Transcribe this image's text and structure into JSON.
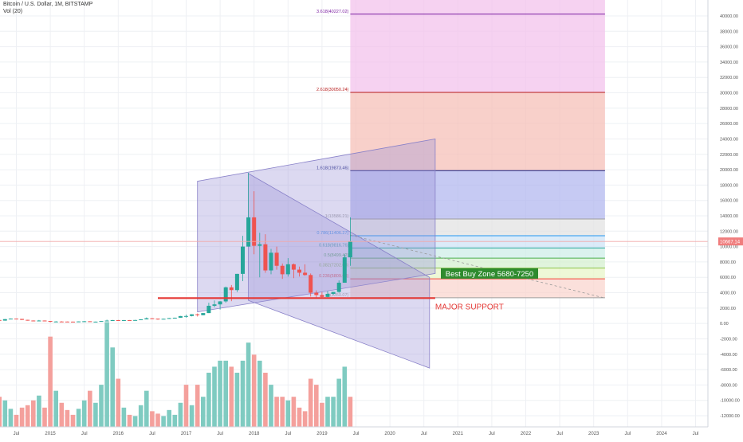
{
  "header": {
    "title": "Bitcoin / U.S. Dollar, 1M, BITSTAMP",
    "volume_label": "Vol (20)"
  },
  "colors": {
    "up": "#26a69a",
    "down": "#ef5350",
    "up_vol": "#7fcbc1",
    "down_vol": "#f4a09c",
    "support_line": "#e53935",
    "price_line": "#f2a7a7",
    "channel_fill": "#9a93d6",
    "channel_stroke": "#8880c8",
    "buy_zone_bg": "#2e8b2e",
    "buy_zone_text": "#ffffff",
    "fib_purple": "#7b1fa2",
    "fib_red": "#b71c1c",
    "fib_blue": "#1a237e",
    "price_badge": "#f07d7d"
  },
  "chart_data": {
    "type": "candlestick",
    "title": "Bitcoin / U.S. Dollar, 1M, BITSTAMP",
    "timeframe": "1M",
    "exchange": "BITSTAMP",
    "last_price": "10667.14",
    "y_axis": {
      "range": [
        -12000,
        40000
      ],
      "ticks": [
        -12000,
        -10000,
        -8000,
        -6000,
        -4000,
        -2000,
        0,
        2000,
        4000,
        6000,
        8000,
        10000,
        12000,
        14000,
        16000,
        18000,
        20000,
        22000,
        24000,
        26000,
        28000,
        30000,
        32000,
        34000,
        36000,
        38000,
        40000
      ],
      "tick_labels": [
        "-12000.00",
        "-10000.00",
        "-8000.00",
        "-6000.00",
        "-4000.00",
        "-2000.00",
        "0.00",
        "2000.00",
        "4000.00",
        "6000.00",
        "8000.00",
        "10000.00",
        "12000.00",
        "14000.00",
        "16000.00",
        "18000.00",
        "20000.00",
        "22000.00",
        "24000.00",
        "26000.00",
        "28000.00",
        "30000.00",
        "32000.00",
        "34000.00",
        "36000.00",
        "38000.00",
        "40000.00"
      ]
    },
    "x_axis": {
      "ticks": [
        {
          "label": "Jul",
          "date": "2014-07"
        },
        {
          "label": "2015",
          "date": "2015-01"
        },
        {
          "label": "Jul",
          "date": "2015-07"
        },
        {
          "label": "2016",
          "date": "2016-01"
        },
        {
          "label": "Jul",
          "date": "2016-07"
        },
        {
          "label": "2017",
          "date": "2017-01"
        },
        {
          "label": "Jul",
          "date": "2017-07"
        },
        {
          "label": "2018",
          "date": "2018-01"
        },
        {
          "label": "Jul",
          "date": "2018-07"
        },
        {
          "label": "2019",
          "date": "2019-01"
        },
        {
          "label": "Jul",
          "date": "2019-07"
        },
        {
          "label": "2020",
          "date": "2020-01"
        },
        {
          "label": "Jul",
          "date": "2020-07"
        },
        {
          "label": "2021",
          "date": "2021-01"
        },
        {
          "label": "Jul",
          "date": "2021-07"
        },
        {
          "label": "2022",
          "date": "2022-01"
        },
        {
          "label": "Jul",
          "date": "2022-07"
        },
        {
          "label": "2023",
          "date": "2023-01"
        },
        {
          "label": "Jul",
          "date": "2023-07"
        },
        {
          "label": "2024",
          "date": "2024-01"
        },
        {
          "label": "Jul",
          "date": "2024-07"
        }
      ]
    },
    "candles": [
      {
        "date": "2014-02",
        "o": 560,
        "h": 700,
        "l": 420,
        "c": 440
      },
      {
        "date": "2014-03",
        "o": 440,
        "h": 520,
        "l": 420,
        "c": 450
      },
      {
        "date": "2014-04",
        "o": 450,
        "h": 500,
        "l": 340,
        "c": 370
      },
      {
        "date": "2014-05",
        "o": 370,
        "h": 580,
        "l": 360,
        "c": 560
      },
      {
        "date": "2014-06",
        "o": 560,
        "h": 650,
        "l": 550,
        "c": 630
      },
      {
        "date": "2014-07",
        "o": 630,
        "h": 640,
        "l": 570,
        "c": 590
      },
      {
        "date": "2014-08",
        "o": 590,
        "h": 600,
        "l": 440,
        "c": 470
      },
      {
        "date": "2014-09",
        "o": 470,
        "h": 480,
        "l": 360,
        "c": 380
      },
      {
        "date": "2014-10",
        "o": 380,
        "h": 400,
        "l": 280,
        "c": 330
      },
      {
        "date": "2014-11",
        "o": 330,
        "h": 450,
        "l": 320,
        "c": 380
      },
      {
        "date": "2014-12",
        "o": 380,
        "h": 390,
        "l": 300,
        "c": 320
      },
      {
        "date": "2015-01",
        "o": 320,
        "h": 320,
        "l": 150,
        "c": 220
      },
      {
        "date": "2015-02",
        "o": 220,
        "h": 300,
        "l": 210,
        "c": 250
      },
      {
        "date": "2015-03",
        "o": 250,
        "h": 300,
        "l": 240,
        "c": 245
      },
      {
        "date": "2015-04",
        "o": 245,
        "h": 255,
        "l": 215,
        "c": 236
      },
      {
        "date": "2015-05",
        "o": 236,
        "h": 245,
        "l": 225,
        "c": 230
      },
      {
        "date": "2015-06",
        "o": 230,
        "h": 265,
        "l": 220,
        "c": 263
      },
      {
        "date": "2015-07",
        "o": 263,
        "h": 315,
        "l": 255,
        "c": 285
      },
      {
        "date": "2015-08",
        "o": 285,
        "h": 285,
        "l": 200,
        "c": 230
      },
      {
        "date": "2015-09",
        "o": 230,
        "h": 245,
        "l": 225,
        "c": 236
      },
      {
        "date": "2015-10",
        "o": 236,
        "h": 330,
        "l": 235,
        "c": 314
      },
      {
        "date": "2015-11",
        "o": 314,
        "h": 500,
        "l": 310,
        "c": 377
      },
      {
        "date": "2015-12",
        "o": 377,
        "h": 465,
        "l": 350,
        "c": 430
      },
      {
        "date": "2016-01",
        "o": 430,
        "h": 460,
        "l": 350,
        "c": 368
      },
      {
        "date": "2016-02",
        "o": 368,
        "h": 440,
        "l": 365,
        "c": 436
      },
      {
        "date": "2016-03",
        "o": 436,
        "h": 440,
        "l": 400,
        "c": 416
      },
      {
        "date": "2016-04",
        "o": 416,
        "h": 470,
        "l": 410,
        "c": 448
      },
      {
        "date": "2016-05",
        "o": 448,
        "h": 550,
        "l": 440,
        "c": 531
      },
      {
        "date": "2016-06",
        "o": 531,
        "h": 780,
        "l": 530,
        "c": 670
      },
      {
        "date": "2016-07",
        "o": 670,
        "h": 700,
        "l": 610,
        "c": 624
      },
      {
        "date": "2016-08",
        "o": 624,
        "h": 630,
        "l": 480,
        "c": 573
      },
      {
        "date": "2016-09",
        "o": 573,
        "h": 630,
        "l": 570,
        "c": 608
      },
      {
        "date": "2016-10",
        "o": 608,
        "h": 720,
        "l": 600,
        "c": 700
      },
      {
        "date": "2016-11",
        "o": 700,
        "h": 760,
        "l": 680,
        "c": 745
      },
      {
        "date": "2016-12",
        "o": 745,
        "h": 980,
        "l": 740,
        "c": 963
      },
      {
        "date": "2017-01",
        "o": 963,
        "h": 1150,
        "l": 750,
        "c": 970
      },
      {
        "date": "2017-02",
        "o": 970,
        "h": 1200,
        "l": 920,
        "c": 1190
      },
      {
        "date": "2017-03",
        "o": 1190,
        "h": 1300,
        "l": 900,
        "c": 1080
      },
      {
        "date": "2017-04",
        "o": 1080,
        "h": 1350,
        "l": 1060,
        "c": 1350
      },
      {
        "date": "2017-05",
        "o": 1350,
        "h": 2700,
        "l": 1350,
        "c": 2300
      },
      {
        "date": "2017-06",
        "o": 2300,
        "h": 3000,
        "l": 2100,
        "c": 2480
      },
      {
        "date": "2017-07",
        "o": 2480,
        "h": 2900,
        "l": 1800,
        "c": 2870
      },
      {
        "date": "2017-08",
        "o": 2870,
        "h": 4800,
        "l": 2700,
        "c": 4700
      },
      {
        "date": "2017-09",
        "o": 4700,
        "h": 5000,
        "l": 2900,
        "c": 4340
      },
      {
        "date": "2017-10",
        "o": 4340,
        "h": 6450,
        "l": 4100,
        "c": 6450
      },
      {
        "date": "2017-11",
        "o": 6450,
        "h": 11400,
        "l": 5500,
        "c": 10000
      },
      {
        "date": "2017-12",
        "o": 10000,
        "h": 19600,
        "l": 10000,
        "c": 13800
      },
      {
        "date": "2018-01",
        "o": 13800,
        "h": 17200,
        "l": 9000,
        "c": 10100
      },
      {
        "date": "2018-02",
        "o": 10100,
        "h": 11800,
        "l": 6000,
        "c": 10300
      },
      {
        "date": "2018-03",
        "o": 10300,
        "h": 11600,
        "l": 6600,
        "c": 6900
      },
      {
        "date": "2018-04",
        "o": 6900,
        "h": 9700,
        "l": 6400,
        "c": 9200
      },
      {
        "date": "2018-05",
        "o": 9200,
        "h": 10000,
        "l": 7000,
        "c": 7500
      },
      {
        "date": "2018-06",
        "o": 7500,
        "h": 7800,
        "l": 5800,
        "c": 6400
      },
      {
        "date": "2018-07",
        "o": 6400,
        "h": 8500,
        "l": 6100,
        "c": 7700
      },
      {
        "date": "2018-08",
        "o": 7700,
        "h": 7800,
        "l": 5900,
        "c": 7000
      },
      {
        "date": "2018-09",
        "o": 7000,
        "h": 7400,
        "l": 6100,
        "c": 6600
      },
      {
        "date": "2018-10",
        "o": 6600,
        "h": 7700,
        "l": 6200,
        "c": 6300
      },
      {
        "date": "2018-11",
        "o": 6300,
        "h": 6500,
        "l": 3500,
        "c": 4000
      },
      {
        "date": "2018-12",
        "o": 4000,
        "h": 4300,
        "l": 3200,
        "c": 3700
      },
      {
        "date": "2019-01",
        "o": 3700,
        "h": 4100,
        "l": 3350,
        "c": 3450
      },
      {
        "date": "2019-02",
        "o": 3450,
        "h": 4200,
        "l": 3400,
        "c": 3850
      },
      {
        "date": "2019-03",
        "o": 3850,
        "h": 4100,
        "l": 3700,
        "c": 4100
      },
      {
        "date": "2019-04",
        "o": 4100,
        "h": 5600,
        "l": 4000,
        "c": 5300
      },
      {
        "date": "2019-05",
        "o": 5300,
        "h": 9000,
        "l": 5300,
        "c": 8600
      },
      {
        "date": "2019-06",
        "o": 8600,
        "h": 13800,
        "l": 7500,
        "c": 10667
      }
    ],
    "volume_series": [
      {
        "date": "2014-02",
        "up": false,
        "v": 4.5
      },
      {
        "date": "2014-03",
        "up": true,
        "v": 2.6
      },
      {
        "date": "2014-04",
        "up": false,
        "v": 2.5
      },
      {
        "date": "2014-05",
        "up": true,
        "v": 2.2
      },
      {
        "date": "2014-06",
        "up": true,
        "v": 1.5
      },
      {
        "date": "2014-07",
        "up": false,
        "v": 1.0
      },
      {
        "date": "2014-08",
        "up": false,
        "v": 1.6
      },
      {
        "date": "2014-09",
        "up": false,
        "v": 1.8
      },
      {
        "date": "2014-10",
        "up": false,
        "v": 2.2
      },
      {
        "date": "2014-11",
        "up": true,
        "v": 2.6
      },
      {
        "date": "2014-12",
        "up": false,
        "v": 1.6
      },
      {
        "date": "2015-01",
        "up": false,
        "v": 7.5
      },
      {
        "date": "2015-02",
        "up": true,
        "v": 3.0
      },
      {
        "date": "2015-03",
        "up": false,
        "v": 2.0
      },
      {
        "date": "2015-04",
        "up": false,
        "v": 1.4
      },
      {
        "date": "2015-05",
        "up": false,
        "v": 1.0
      },
      {
        "date": "2015-06",
        "up": true,
        "v": 1.5
      },
      {
        "date": "2015-07",
        "up": true,
        "v": 2.2
      },
      {
        "date": "2015-08",
        "up": false,
        "v": 3.0
      },
      {
        "date": "2015-09",
        "up": true,
        "v": 2.0
      },
      {
        "date": "2015-10",
        "up": true,
        "v": 3.5
      },
      {
        "date": "2015-11",
        "up": true,
        "v": 8.7
      },
      {
        "date": "2015-12",
        "up": true,
        "v": 6.6
      },
      {
        "date": "2016-01",
        "up": false,
        "v": 4.0
      },
      {
        "date": "2016-02",
        "up": true,
        "v": 1.6
      },
      {
        "date": "2016-03",
        "up": false,
        "v": 1.0
      },
      {
        "date": "2016-04",
        "up": true,
        "v": 0.9
      },
      {
        "date": "2016-05",
        "up": true,
        "v": 1.8
      },
      {
        "date": "2016-06",
        "up": true,
        "v": 3.0
      },
      {
        "date": "2016-07",
        "up": false,
        "v": 1.3
      },
      {
        "date": "2016-08",
        "up": false,
        "v": 1.1
      },
      {
        "date": "2016-09",
        "up": true,
        "v": 0.9
      },
      {
        "date": "2016-10",
        "up": true,
        "v": 1.4
      },
      {
        "date": "2016-11",
        "up": true,
        "v": 1.0
      },
      {
        "date": "2016-12",
        "up": true,
        "v": 2.0
      },
      {
        "date": "2017-01",
        "up": false,
        "v": 3.5
      },
      {
        "date": "2017-02",
        "up": true,
        "v": 1.8
      },
      {
        "date": "2017-03",
        "up": false,
        "v": 3.5
      },
      {
        "date": "2017-04",
        "up": true,
        "v": 2.5
      },
      {
        "date": "2017-05",
        "up": true,
        "v": 4.5
      },
      {
        "date": "2017-06",
        "up": true,
        "v": 5.0
      },
      {
        "date": "2017-07",
        "up": true,
        "v": 5.5
      },
      {
        "date": "2017-08",
        "up": true,
        "v": 5.5
      },
      {
        "date": "2017-09",
        "up": false,
        "v": 5.0
      },
      {
        "date": "2017-10",
        "up": true,
        "v": 4.5
      },
      {
        "date": "2017-11",
        "up": true,
        "v": 5.5
      },
      {
        "date": "2017-12",
        "up": true,
        "v": 7.0
      },
      {
        "date": "2018-01",
        "up": false,
        "v": 6.0
      },
      {
        "date": "2018-02",
        "up": true,
        "v": 5.5
      },
      {
        "date": "2018-03",
        "up": false,
        "v": 4.5
      },
      {
        "date": "2018-04",
        "up": true,
        "v": 3.5
      },
      {
        "date": "2018-05",
        "up": false,
        "v": 2.5
      },
      {
        "date": "2018-06",
        "up": false,
        "v": 2.5
      },
      {
        "date": "2018-07",
        "up": true,
        "v": 2.2
      },
      {
        "date": "2018-08",
        "up": false,
        "v": 2.5
      },
      {
        "date": "2018-09",
        "up": false,
        "v": 1.6
      },
      {
        "date": "2018-10",
        "up": false,
        "v": 1.3
      },
      {
        "date": "2018-11",
        "up": false,
        "v": 4.0
      },
      {
        "date": "2018-12",
        "up": false,
        "v": 3.5
      },
      {
        "date": "2019-01",
        "up": false,
        "v": 2.0
      },
      {
        "date": "2019-02",
        "up": true,
        "v": 2.5
      },
      {
        "date": "2019-03",
        "up": true,
        "v": 2.5
      },
      {
        "date": "2019-04",
        "up": true,
        "v": 4.0
      },
      {
        "date": "2019-05",
        "up": true,
        "v": 5.0
      },
      {
        "date": "2019-06",
        "up": false,
        "v": 2.5
      }
    ],
    "drawings": {
      "channel_upper": {
        "upper_start": {
          "date": "2017-03",
          "price": 18500
        },
        "upper_end": {
          "date": "2020-09",
          "price": 24000
        },
        "lower_start": {
          "date": "2017-03",
          "price": 1500
        },
        "lower_end": {
          "date": "2020-09",
          "price": 6500
        }
      },
      "channel_lower": {
        "upper_start": {
          "date": "2017-12",
          "price": 19500
        },
        "upper_end": {
          "date": "2020-08",
          "price": 6000
        },
        "lower_start": {
          "date": "2017-12",
          "price": 3000
        },
        "lower_end": {
          "date": "2020-08",
          "price": -5800
        }
      },
      "projection_dashed": {
        "start": {
          "date": "2019-06",
          "price": 11500
        },
        "end": {
          "date": "2023-03",
          "price": 3300
        }
      },
      "major_support": {
        "price": 3300,
        "start_date": "2016-08",
        "end_date": "2020-09",
        "label": "MAJOR SUPPORT"
      },
      "buy_zone": {
        "label": "Best Buy Zone 5680-7250",
        "date": "2020-10",
        "price": 6500
      },
      "fibonacci": {
        "start_date": "2019-06",
        "end_date": "2023-03",
        "label_date": "2019-06",
        "levels": [
          {
            "ratio_label": "3.618(40227.02)",
            "price": 40227,
            "line": "#7b1fa2",
            "fill": "#f3c3ec"
          },
          {
            "ratio_label": "2.618(30050.24)",
            "price": 30050,
            "line": "#b71c1c",
            "fill": "#f5c0b8"
          },
          {
            "ratio_label": "1.618(19873.46)",
            "price": 19873,
            "line": "#1a237e",
            "fill": "#b3b8ef"
          },
          {
            "ratio_label": "1(13586.21)",
            "price": 13586,
            "line": "#9e9e9e",
            "fill": "#e3e3e3"
          },
          {
            "ratio_label": "0.786(11406.27)",
            "price": 11406,
            "line": "#2196f3",
            "fill": "#cfe4f7"
          },
          {
            "ratio_label": "0.618(9816.76)",
            "price": 9816,
            "line": "#26a69a",
            "fill": "#cfeee8"
          },
          {
            "ratio_label": "0.5(8499.42)",
            "price": 8499,
            "line": "#4caf50",
            "fill": "#d6f0d0"
          },
          {
            "ratio_label": "0.382(7202.08)",
            "price": 7202,
            "line": "#8bc34a",
            "fill": "#e8f6c9"
          },
          {
            "ratio_label": "0.236(5809.63)",
            "price": 5809,
            "line": "#f44336",
            "fill": "#f9d5cf"
          },
          {
            "ratio_label": "0(3350.07)",
            "price": 3350,
            "line": "#9e9e9e",
            "fill": null
          }
        ]
      }
    }
  }
}
